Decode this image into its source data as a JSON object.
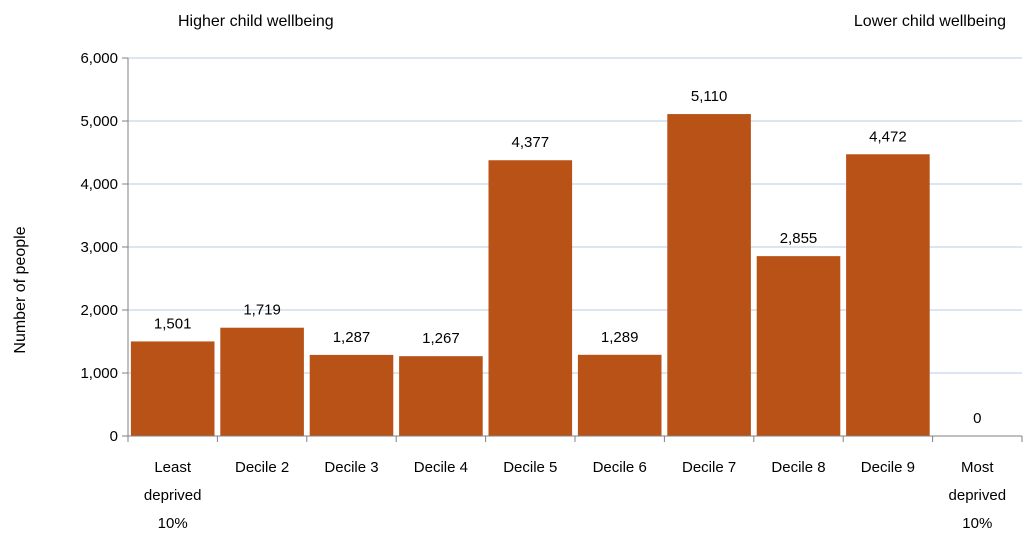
{
  "chart_data": {
    "type": "bar",
    "title": "",
    "annotations": {
      "left": "Higher child wellbeing",
      "right": "Lower child wellbeing"
    },
    "xlabel": "",
    "ylabel": "Number of people",
    "categories": [
      [
        "Least",
        "deprived",
        "10%"
      ],
      [
        "Decile 2"
      ],
      [
        "Decile 3"
      ],
      [
        "Decile 4"
      ],
      [
        "Decile 5"
      ],
      [
        "Decile 6"
      ],
      [
        "Decile 7"
      ],
      [
        "Decile 8"
      ],
      [
        "Decile 9"
      ],
      [
        "Most",
        "deprived",
        "10%"
      ]
    ],
    "values": [
      1501,
      1719,
      1287,
      1267,
      4377,
      1289,
      5110,
      2855,
      4472,
      0
    ],
    "data_labels": [
      "1,501",
      "1,719",
      "1,287",
      "1,267",
      "4,377",
      "1,289",
      "5,110",
      "2,855",
      "4,472",
      "0"
    ],
    "ylim": [
      0,
      6000
    ],
    "yticks": [
      0,
      1000,
      2000,
      3000,
      4000,
      5000,
      6000
    ],
    "ytick_labels": [
      "0",
      "1,000",
      "2,000",
      "3,000",
      "4,000",
      "5,000",
      "6,000"
    ],
    "grid": true,
    "legend": "none",
    "colors": {
      "bar": "#B85217",
      "grid": "#B8CCE4",
      "axis": "#808080"
    }
  }
}
